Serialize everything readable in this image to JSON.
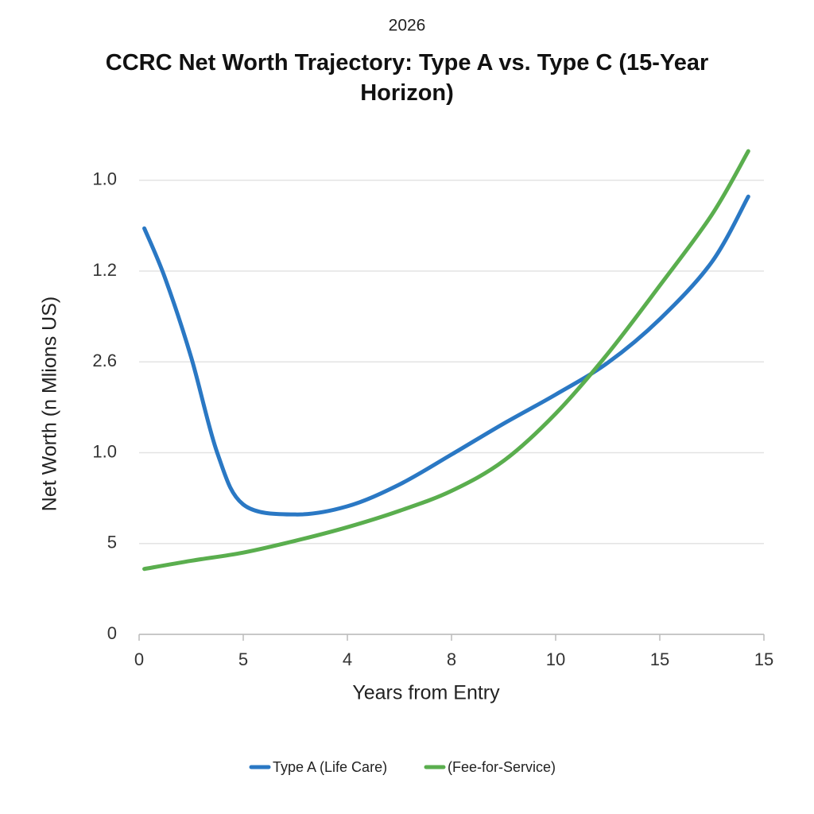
{
  "chart_data": {
    "type": "line",
    "subtitle": "2026",
    "title": "CCRC Net Worth Trajectory: Type A vs. Type C (15-Year Horizon)",
    "x_label": "Years from Entry",
    "y_label": "Net Worth (n Mlions US)",
    "xlim": [
      0,
      6
    ],
    "xticks": [
      0,
      {
        "value": 1,
        "label": "5"
      },
      {
        "value": 2,
        "label": "4"
      },
      {
        "value": 3,
        "label": "8"
      },
      {
        "value": 4,
        "label": "10"
      },
      {
        "value": 5,
        "label": "15"
      },
      {
        "value": 6,
        "label": "15"
      }
    ],
    "ylim": [
      0,
      5.4
    ],
    "yticks": [
      0,
      {
        "value": 1,
        "label": "5"
      },
      {
        "value": 2,
        "label": "1.0"
      },
      {
        "value": 3,
        "label": "2.6"
      },
      {
        "value": 4,
        "label": "1.2"
      },
      {
        "value": 5,
        "label": "1.0"
      }
    ],
    "grid": true,
    "legend": "bottom",
    "series": [
      {
        "name": "Type A (Life Care)",
        "color": "#2a78c4",
        "x": [
          0.05,
          0.25,
          0.5,
          0.75,
          1.0,
          1.5,
          2.0,
          2.5,
          3.0,
          3.5,
          4.0,
          4.5,
          5.0,
          5.5,
          5.85
        ],
        "values": [
          4.47,
          3.92,
          3.05,
          2.0,
          1.43,
          1.32,
          1.41,
          1.65,
          1.98,
          2.32,
          2.64,
          2.99,
          3.47,
          4.1,
          4.82
        ]
      },
      {
        "name": "(Fee-for-Service)",
        "color": "#5aae4e",
        "x": [
          0.05,
          0.5,
          1.0,
          1.5,
          2.0,
          2.5,
          3.0,
          3.5,
          4.0,
          4.5,
          5.0,
          5.5,
          5.85
        ],
        "values": [
          0.72,
          0.81,
          0.9,
          1.03,
          1.18,
          1.36,
          1.58,
          1.91,
          2.43,
          3.09,
          3.84,
          4.62,
          5.32
        ]
      }
    ]
  }
}
